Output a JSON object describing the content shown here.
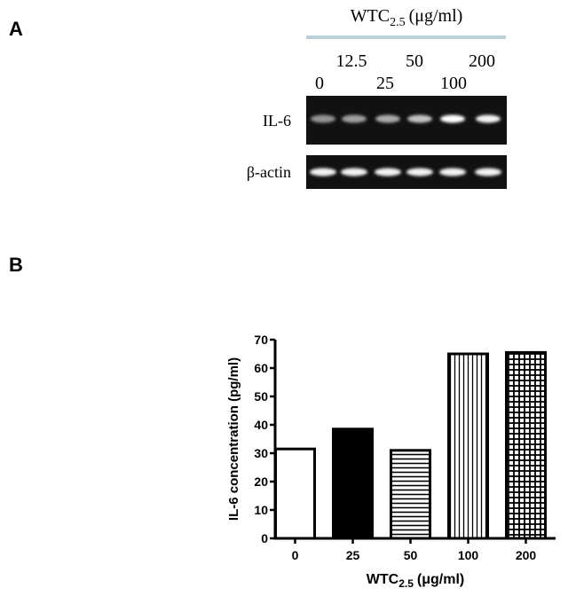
{
  "panel_labels": [
    "A",
    "B"
  ],
  "gel": {
    "title": {
      "main": "WTC",
      "sub": "2.5",
      "unit": "(μg/ml)"
    },
    "lanes_top": [
      "12.5",
      "50",
      "200"
    ],
    "lanes_bottom": [
      "0",
      "25",
      "100"
    ],
    "rows": [
      "IL-6",
      "β-actin"
    ]
  },
  "chart_data": {
    "type": "bar",
    "ylabel": "IL-6 concentration (pg/ml)",
    "xlabel": {
      "main": "WTC",
      "sub": "2.5",
      "unit": "(μg/ml)"
    },
    "categories": [
      "0",
      "25",
      "50",
      "100",
      "200"
    ],
    "values": [
      31.5,
      38.5,
      31,
      65,
      65.5
    ],
    "fills": [
      "none",
      "solid",
      "horizontal",
      "vertical",
      "grid"
    ],
    "color": "#000000",
    "ylim": [
      0,
      70
    ],
    "yticks": [
      0,
      10,
      20,
      30,
      40,
      50,
      60,
      70
    ]
  }
}
